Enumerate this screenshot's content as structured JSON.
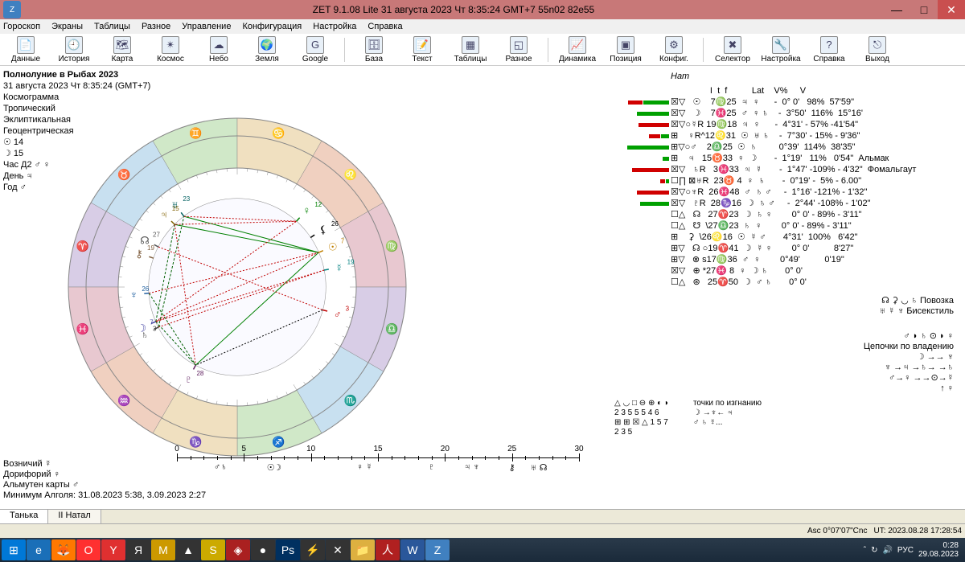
{
  "titlebar": {
    "title": "ZET 9.1.08 Lite   31 августа 2023   Чт   8:35:24 GMT+7 55n02  82e55"
  },
  "menu": [
    "Гороскоп",
    "Экраны",
    "Таблицы",
    "Разное",
    "Управление",
    "Конфигурация",
    "Настройка",
    "Справка"
  ],
  "toolbar": [
    {
      "label": "Данные"
    },
    {
      "label": "История"
    },
    {
      "label": "Карта"
    },
    {
      "label": "Космос"
    },
    {
      "label": "Небо"
    },
    {
      "label": "Земля"
    },
    {
      "label": "Google"
    },
    {
      "label": "База"
    },
    {
      "label": "Текст"
    },
    {
      "label": "Таблицы"
    },
    {
      "label": "Разное"
    },
    {
      "label": "Динамика"
    },
    {
      "label": "Позиция"
    },
    {
      "label": "Конфиг."
    },
    {
      "label": "Селектор"
    },
    {
      "label": "Настройка"
    },
    {
      "label": "Справка"
    },
    {
      "label": "Выход"
    }
  ],
  "header": {
    "title": "Полнолуние в Рыбах 2023",
    "date": "31 августа 2023  Чт   8:35:24 (GMT+7)",
    "type": "Космограмма",
    "lines": [
      "Тропический",
      "Эклиптикальная",
      "Геоцентрическая",
      "☉ 14",
      "☽ 15",
      "Час Д2 ♂ ♀",
      "День ♃",
      "Год ♂"
    ]
  },
  "wheel": {
    "outer_r": 210,
    "ring1_r": 188,
    "ring2_r": 148,
    "inner_r": 110,
    "sign_colors": [
      "#d8cde6",
      "#c8e0f0",
      "#d0e8c8",
      "#f0e0c0",
      "#f0d0c0",
      "#e8c8d0",
      "#d8cde6",
      "#c8e0f0",
      "#d0e8c8",
      "#f0e0c0",
      "#f0d0c0",
      "#e8c8d0"
    ],
    "sign_glyphs": [
      "♈",
      "♉",
      "♊",
      "♋",
      "♌",
      "♍",
      "♎",
      "♏",
      "♐",
      "♑",
      "♒",
      "♓"
    ],
    "planets": [
      {
        "g": "☉",
        "deg": 157,
        "c": "#c08000",
        "txt": "7"
      },
      {
        "g": "☽",
        "deg": 337,
        "c": "#4040a0",
        "txt": "7"
      },
      {
        "g": "☿",
        "deg": 169,
        "c": "#008080",
        "txt": "19"
      },
      {
        "g": "♀",
        "deg": 132,
        "c": "#008000",
        "txt": "12"
      },
      {
        "g": "♂",
        "deg": 195,
        "c": "#c00000",
        "txt": "3"
      },
      {
        "g": "♃",
        "deg": 45,
        "c": "#806000",
        "txt": "15"
      },
      {
        "g": "♄",
        "deg": 333,
        "c": "#404040",
        "txt": "3"
      },
      {
        "g": "♅",
        "deg": 53,
        "c": "#006060",
        "txt": "23"
      },
      {
        "g": "♆",
        "deg": 356,
        "c": "#2060a0",
        "txt": "26"
      },
      {
        "g": "♇",
        "deg": 298,
        "c": "#602060",
        "txt": "28"
      },
      {
        "g": "☊",
        "deg": 27,
        "c": "#555",
        "txt": "27"
      },
      {
        "g": "⚸",
        "deg": 146,
        "c": "#000",
        "txt": "26"
      },
      {
        "g": "⚷",
        "deg": 19,
        "c": "#806040",
        "txt": "19"
      }
    ],
    "aspects": [
      {
        "a": 157,
        "b": 337,
        "c": "#c00000",
        "d": "2,2"
      },
      {
        "a": 157,
        "b": 45,
        "c": "#008000",
        "d": ""
      },
      {
        "a": 337,
        "b": 45,
        "c": "#006000",
        "d": "3,2"
      },
      {
        "a": 157,
        "b": 298,
        "c": "#008000",
        "d": ""
      },
      {
        "a": 337,
        "b": 298,
        "c": "#006000",
        "d": "3,2"
      },
      {
        "a": 45,
        "b": 298,
        "c": "#c00000",
        "d": "2,2"
      },
      {
        "a": 157,
        "b": 53,
        "c": "#008000",
        "d": ""
      },
      {
        "a": 337,
        "b": 132,
        "c": "#c00000",
        "d": "2,2"
      },
      {
        "a": 169,
        "b": 337,
        "c": "#c00000",
        "d": "2,2"
      },
      {
        "a": 195,
        "b": 298,
        "c": "#000",
        "d": "2,2"
      },
      {
        "a": 132,
        "b": 45,
        "c": "#c00000",
        "d": "2,2"
      },
      {
        "a": 333,
        "b": 53,
        "c": "#006000",
        "d": "3,2"
      },
      {
        "a": 333,
        "b": 169,
        "c": "#c00000",
        "d": "2,2"
      },
      {
        "a": 356,
        "b": 298,
        "c": "#006000",
        "d": "3,2"
      },
      {
        "a": 27,
        "b": 195,
        "c": "#c00000",
        "d": "2,2"
      },
      {
        "a": 53,
        "b": 132,
        "c": "#c00000",
        "d": "2,2"
      },
      {
        "a": 356,
        "b": 157,
        "c": "#c00000",
        "d": "2,2"
      }
    ]
  },
  "ruler": {
    "labels": [
      "0",
      "5",
      "10",
      "15",
      "20",
      "25",
      "30"
    ],
    "glyphs": [
      "♂",
      "♄",
      "☉",
      "☽",
      "♀ ☿",
      "♇",
      "♃ ♆",
      "⚷",
      "♅ ☊"
    ]
  },
  "bottom": {
    "l1": "Возничий  ☿",
    "l2": "Дорифорий  ♀",
    "l3": "Альмутен карты  ♂",
    "l4": "Минимум Алголя: 31.08.2023  5:38,  3.09.2023  2:27"
  },
  "table": {
    "header": "                I  t  f          Lat    V%     V",
    "rows": [
      {
        "bar": [
          [
            "r",
            18
          ],
          [
            "g",
            32
          ]
        ],
        "txt": "☒▽   ☉    7♍25  ♃  ♀      -  0° 0'   98%  57'59\""
      },
      {
        "bar": [
          [
            "g",
            40
          ]
        ],
        "txt": "☒▽   ☽    7♓25  ♂  ♀ ♄    -  3°50'  116%  15°16'"
      },
      {
        "bar": [
          [
            "r",
            38
          ]
        ],
        "txt": "☒▽○☿R 19♍18  ♃  ♀      -  4°31' - 57% -41'54\""
      },
      {
        "bar": [
          [
            "r",
            14
          ],
          [
            "g",
            10
          ]
        ],
        "txt": "⊞    ♀R^12♌31  ☉  ♅ ♄    -  7°30' - 15% - 9'36\""
      },
      {
        "bar": [
          [
            "g",
            52
          ]
        ],
        "txt": "⊞▽○♂    2♎25  ☉  ♄         0°39'  114%  38'35\""
      },
      {
        "bar": [
          [
            "g",
            8
          ]
        ],
        "txt": "⊞    ♃   15♉33  ♀  ☽       -  1°19'   11%   0'54\"  Альмак"
      },
      {
        "bar": [
          [
            "r",
            46
          ]
        ],
        "txt": "☒▽   ♄R   3♓33  ♃  ☿       -  1°47' -109% - 4'32\"  Фомальгаут"
      },
      {
        "bar": [
          [
            "r",
            6
          ],
          [
            "g",
            4
          ]
        ],
        "txt": "☐∏ ⊠♅R  23♉ 4  ♀  ♄       -  0°19' -  5% - 6.00\""
      },
      {
        "bar": [
          [
            "r",
            40
          ]
        ],
        "txt": "☒▽○♆R  26♓48  ♂  ♄ ♂     -  1°16' -121% - 1'32\""
      },
      {
        "bar": [
          [
            "g",
            36
          ]
        ],
        "txt": "☒▽   ♇R  28♑16  ☽  ♄ ♂     -  2°44' -108% - 1'02\""
      },
      {
        "bar": [],
        "txt": "☐△   ☊   27♈23  ☽  ♄ ♀        0° 0' - 89% - 3'11\""
      },
      {
        "bar": [],
        "txt": "☐△   ☋  \\27♎23  ♄  ♀        0° 0' - 89% - 3'11\""
      },
      {
        "bar": [],
        "txt": "⊞    ⚳  \\26♌16  ☉  ☿ ♂       4°31'  100%   6'42\""
      },
      {
        "bar": [],
        "txt": "⊞▽   ☊ ○19♈41  ☽  ☿ ♀        0° 0'          8'27\""
      },
      {
        "bar": [],
        "txt": "⊞▽   ⊗ s17♍36  ♂  ♀        0°49'          0'19\""
      },
      {
        "bar": [],
        "txt": "☒▽   ⊕ *27♓ 8  ♀  ☽ ♄       0° 0'"
      },
      {
        "bar": [],
        "txt": "☐△   ⊛   25♈50  ☽  ♂ ♄       0° 0'"
      }
    ]
  },
  "rightnotes": {
    "l1": "☊ ⚳ ◡ ♄   Повозка",
    "l2": "♅ ☿ ♆   Бисекстиль",
    "l3": "♂ ◗ ♄  ⊙ ◗ ♀",
    "l4": "Цепочки по владению",
    "l5": "☽ →→ ♆",
    "l6": "♆ →♃ →♄→ →♄",
    "l7": "♂→♀ →→⊙→☿",
    "l8": " ↑ ♀"
  },
  "grid": {
    "left": [
      "△ ◡ □   ⊖ ⊕ ◐ ◗",
      "2  3  5    5  5  4  6",
      "⊞ ⊞ ☒   △  1  5  7",
      "2  3  5"
    ],
    "right": [
      "точки по изгнанию",
      "☽ →♆← ♃",
      "♂ ♄ ☿..."
    ]
  },
  "tabs": [
    "Танька",
    "II Натал"
  ],
  "status": {
    "asc": "Asc  0°07'07\"Cnc",
    "ut": "UT: 2023.08.28 17:28:54"
  },
  "tray": {
    "lang": "РУС",
    "time": "0:28",
    "date": "29.08.2023"
  }
}
